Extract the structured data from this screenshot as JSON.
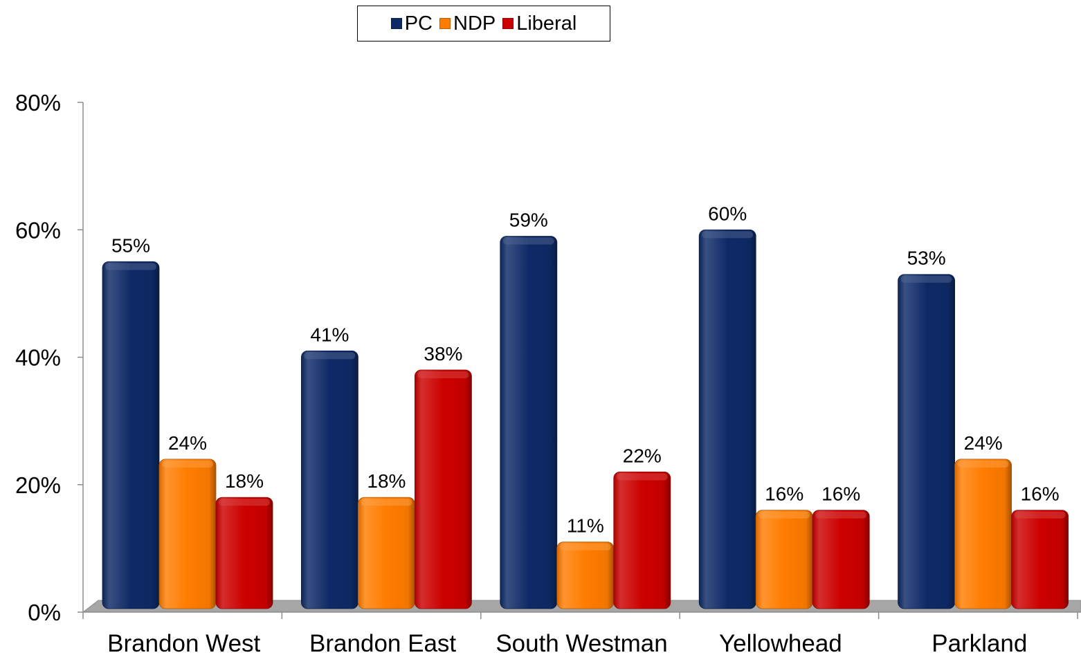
{
  "chart_data": {
    "type": "bar",
    "categories": [
      "Brandon West",
      "Brandon East",
      "South Westman",
      "Yellowhead",
      "Parkland"
    ],
    "series": [
      {
        "name": "PC",
        "color": "#0e2a66",
        "values": [
          55,
          41,
          59,
          60,
          53
        ]
      },
      {
        "name": "NDP",
        "color": "#ff7c00",
        "values": [
          24,
          18,
          11,
          16,
          24
        ]
      },
      {
        "name": "Liberal",
        "color": "#cc0000",
        "values": [
          18,
          38,
          22,
          16,
          16
        ]
      }
    ],
    "value_suffix": "%",
    "ylim": [
      0,
      80
    ],
    "yticks": [
      0,
      20,
      40,
      60,
      80
    ],
    "ytick_labels": [
      "0%",
      "20%",
      "40%",
      "60%",
      "80%"
    ],
    "title": "",
    "xlabel": "",
    "ylabel": "",
    "legend_position": "top-center",
    "grid": false
  }
}
